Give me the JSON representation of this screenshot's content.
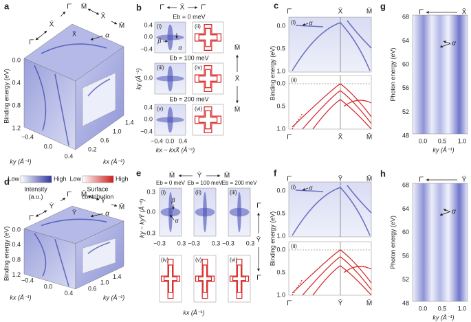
{
  "a": {
    "label": "a",
    "path": [
      "Γ̄",
      "X̄",
      "Γ̄",
      "M̄",
      "X̄",
      "M̄"
    ],
    "point": "X̄",
    "alpha": "α",
    "y_label": "Binding energy (eV)",
    "y_ticks": [
      "0.0",
      "0.4",
      "0.8",
      "1.2"
    ],
    "ky_ticks": [
      "−0.4",
      "0.0",
      "0.4"
    ],
    "ky_label": "ky (Å⁻¹)",
    "kx_ticks": [
      "0.2",
      "0.6",
      "1.0",
      "1.4"
    ],
    "kx_label": "kx (Å⁻¹)"
  },
  "legend": {
    "intensity": {
      "low": "Low",
      "high": "High",
      "title": [
        "Intensity",
        "(a.u.)"
      ]
    },
    "surface": {
      "low": "Low",
      "high": "High",
      "title": [
        "Surface",
        "contribution"
      ]
    }
  },
  "b": {
    "label": "b",
    "path": [
      "Γ̄",
      "X̄",
      "Γ̄"
    ],
    "energies": [
      "Eb = 0 meV",
      "Eb = 100 meV",
      "Eb = 200 meV"
    ],
    "subpanels": [
      "(i)",
      "(ii)",
      "(iii)",
      "(iv)",
      "(v)",
      "(vi)"
    ],
    "beta": "β",
    "alpha": "α",
    "y_ticks": [
      "0.4",
      "0.0",
      "−0.4"
    ],
    "x_ticks": [
      "−0.4",
      "0.0",
      "0.4"
    ],
    "y_label": "ky (Å⁻¹)",
    "x_label": "kx − kxX̄ (Å⁻¹)",
    "side_path": [
      "M̄",
      "X̄",
      "M̄"
    ]
  },
  "c": {
    "label": "c",
    "path": [
      "Γ̄",
      "X̄",
      "M̄"
    ],
    "subpanels": [
      "(i)",
      "(ii)"
    ],
    "alpha": "α",
    "y_ticks": [
      "0.0",
      "0.5",
      "1.0"
    ],
    "y_label": "Binding energy (eV)"
  },
  "d": {
    "label": "d",
    "path": [
      "Γ̄",
      "Ȳ",
      "Γ̄",
      "M̄",
      "Ȳ",
      "M̄"
    ],
    "point": "Ȳ",
    "alpha": "α",
    "y_label": "Binding energy (eV)",
    "y_ticks": [
      "0.0",
      "0.4",
      "0.8",
      "1.2"
    ],
    "ky_ticks": [
      "−0.4",
      "0.0",
      "0.4"
    ],
    "ky_label": "kx (Å⁻¹)",
    "kx_ticks": [
      "0.6",
      "1.0",
      "1.4"
    ],
    "kx_label": "ky (Å⁻¹)"
  },
  "e": {
    "label": "e",
    "path": [
      "M̄",
      "Ȳ",
      "M̄"
    ],
    "energies": [
      "Eb = 0 meV",
      "Eb = 100 meV",
      "Eb = 200 meV"
    ],
    "subpanels": [
      "(i)",
      "(ii)",
      "(iii)",
      "(iv)",
      "(v)",
      "(vi)"
    ],
    "beta": "β",
    "alpha": "α",
    "y_ticks": [
      "0.3",
      "0.0",
      "−0.3"
    ],
    "x_ticks": [
      "−0.3",
      "0.3"
    ],
    "y_label": "ky − kyȲ (Å⁻¹)",
    "x_label": "kx (Å⁻¹)",
    "side_path": [
      "Γ̄",
      "Ȳ",
      "Γ̄"
    ]
  },
  "f": {
    "label": "f",
    "path": [
      "Γ̄",
      "Ȳ",
      "M̄"
    ],
    "subpanels": [
      "(i)",
      "(ii)"
    ],
    "alpha": "α",
    "y_ticks": [
      "0.0",
      "0.5",
      "1.0"
    ],
    "y_label": "Binding energy (eV)"
  },
  "g": {
    "label": "g",
    "path": [
      "Γ̄",
      "X̄"
    ],
    "alpha": "α",
    "y_ticks": [
      "68",
      "64",
      "60",
      "56",
      "52",
      "48"
    ],
    "y_label": "Photon energy (eV)",
    "x_ticks": [
      "0.0",
      "0.5",
      "1.0"
    ],
    "x_label": "ky (Å⁻¹)"
  },
  "h": {
    "label": "h",
    "path": [
      "Γ̄",
      "Ȳ"
    ],
    "alpha": "α",
    "y_ticks": [
      "68",
      "64",
      "60",
      "56",
      "52",
      "48"
    ],
    "y_label": "Photon energy (eV)",
    "x_ticks": [
      "0.0",
      "0.5",
      "1.0"
    ],
    "x_label": "ky (Å⁻¹)"
  }
}
